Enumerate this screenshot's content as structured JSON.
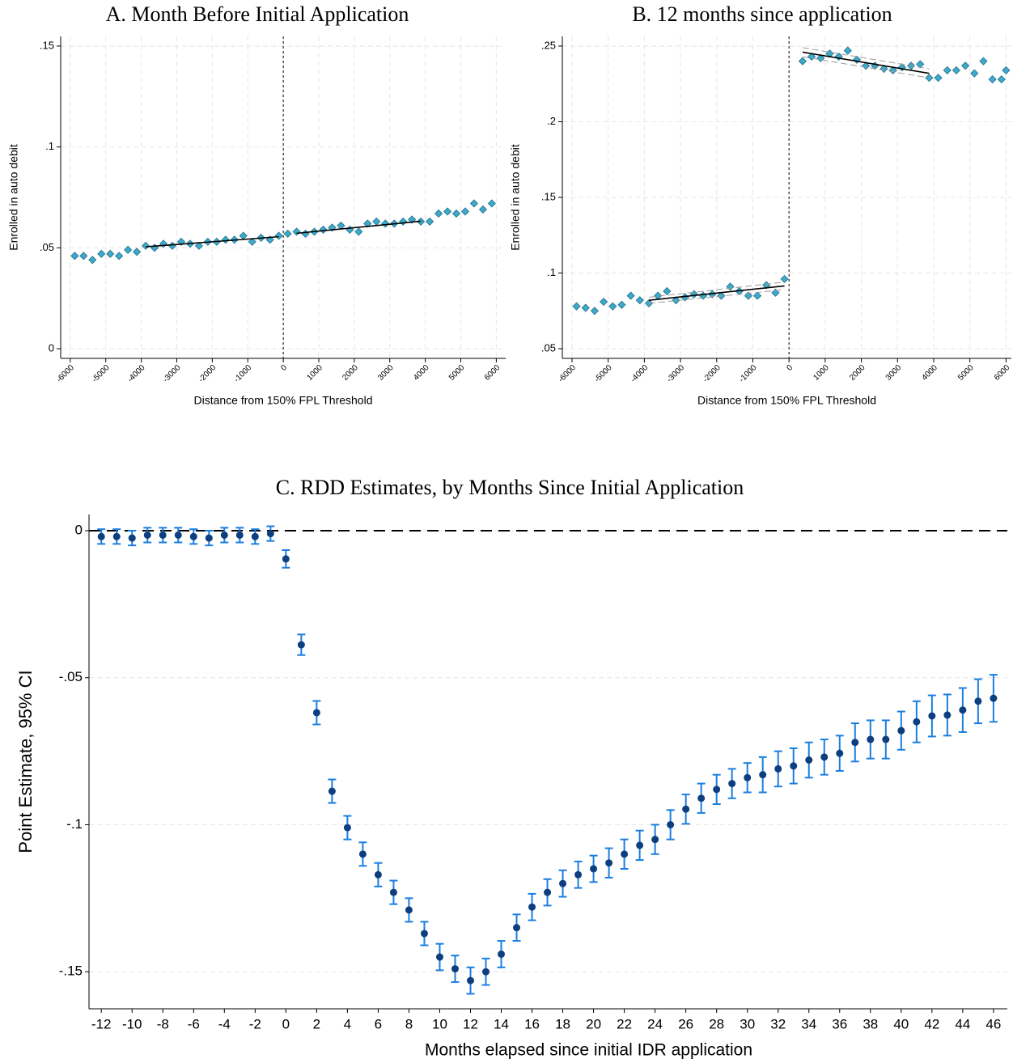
{
  "chart_data": [
    {
      "type": "scatter",
      "title": "A. Month Before Initial Application",
      "x_label": "Distance from 150% FPL Threshold",
      "y_label": "Enrolled in auto debit",
      "xlim": [
        -6270,
        6265
      ],
      "ylim": [
        -0.0048,
        0.1548
      ],
      "xticks": [
        -6000,
        -5000,
        -4000,
        -3000,
        -2000,
        -1000,
        0,
        1000,
        2000,
        3000,
        4000,
        5000,
        6000
      ],
      "yticks": [
        0,
        {
          "value": 0.05,
          "label": ".05"
        },
        {
          "value": 0.1,
          "label": ".1"
        },
        {
          "value": 0.15,
          "label": ".15"
        }
      ],
      "grid": true,
      "vline": 0,
      "series": [
        {
          "mode": "markers",
          "color": "#3fa9c9",
          "x": [
            -5875,
            -5625,
            -5375,
            -5125,
            -4875,
            -4625,
            -4375,
            -4125,
            -3875,
            -3625,
            -3375,
            -3125,
            -2875,
            -2625,
            -2375,
            -2125,
            -1875,
            -1625,
            -1375,
            -1125,
            -875,
            -625,
            -375,
            -125
          ],
          "values": [
            0.046,
            0.046,
            0.044,
            0.047,
            0.047,
            0.046,
            0.049,
            0.048,
            0.051,
            0.05,
            0.052,
            0.051,
            0.053,
            0.052,
            0.051,
            0.053,
            0.053,
            0.054,
            0.054,
            0.056,
            0.053,
            0.055,
            0.054,
            0.056
          ]
        },
        {
          "mode": "markers",
          "color": "#3fa9c9",
          "x": [
            125,
            375,
            625,
            875,
            1125,
            1375,
            1625,
            1875,
            2125,
            2375,
            2625,
            2875,
            3125,
            3375,
            3625,
            3875,
            4125,
            4375,
            4625,
            4875,
            5125,
            5375,
            5625,
            5875
          ],
          "values": [
            0.057,
            0.058,
            0.057,
            0.058,
            0.059,
            0.06,
            0.061,
            0.059,
            0.058,
            0.062,
            0.063,
            0.062,
            0.062,
            0.063,
            0.064,
            0.063,
            0.063,
            0.067,
            0.068,
            0.067,
            0.068,
            0.072,
            0.069,
            0.072
          ]
        },
        {
          "mode": "line",
          "color": "#000000",
          "x": [
            -3875,
            -125
          ],
          "values": [
            0.0505,
            0.0555
          ]
        },
        {
          "mode": "line",
          "color": "#000000",
          "x": [
            375,
            3875
          ],
          "values": [
            0.0572,
            0.0632
          ]
        }
      ]
    },
    {
      "type": "scatter",
      "title": "B. 12 months since application",
      "x_label": "Distance from 150% FPL Threshold",
      "y_label": "Enrolled in auto debit",
      "xlim": [
        -6268,
        6148
      ],
      "ylim": [
        0.0436,
        0.2564
      ],
      "xticks": [
        -6000,
        -5000,
        -4000,
        -3000,
        -2000,
        -1000,
        0,
        1000,
        2000,
        3000,
        4000,
        5000,
        6000
      ],
      "yticks": [
        {
          "value": 0.05,
          "label": ".05"
        },
        {
          "value": 0.1,
          "label": ".1"
        },
        {
          "value": 0.15,
          "label": ".15"
        },
        {
          "value": 0.2,
          "label": ".2"
        },
        {
          "value": 0.25,
          "label": ".25"
        }
      ],
      "grid": true,
      "vline": 0,
      "series": [
        {
          "mode": "markers",
          "color": "#3fa9c9",
          "x": [
            -5875,
            -5625,
            -5375,
            -5125,
            -4875,
            -4625,
            -4375,
            -4125,
            -3875,
            -3625,
            -3375,
            -3125,
            -2875,
            -2625,
            -2375,
            -2125,
            -1875,
            -1625,
            -1375,
            -1125,
            -875,
            -625,
            -375,
            -125
          ],
          "values": [
            0.078,
            0.077,
            0.075,
            0.081,
            0.078,
            0.079,
            0.085,
            0.082,
            0.08,
            0.085,
            0.088,
            0.082,
            0.084,
            0.086,
            0.085,
            0.086,
            0.085,
            0.091,
            0.088,
            0.085,
            0.085,
            0.092,
            0.087,
            0.096
          ]
        },
        {
          "mode": "markers",
          "color": "#3fa9c9",
          "x": [
            375,
            625,
            875,
            1125,
            1375,
            1625,
            1875,
            2125,
            2375,
            2625,
            2875,
            3125,
            3375,
            3625,
            3875,
            4125,
            4375,
            4625,
            4875,
            5125,
            5375,
            5625,
            5875,
            6000
          ],
          "values": [
            0.24,
            0.243,
            0.242,
            0.245,
            0.243,
            0.247,
            0.241,
            0.237,
            0.237,
            0.235,
            0.234,
            0.236,
            0.237,
            0.238,
            0.229,
            0.229,
            0.234,
            0.234,
            0.237,
            0.232,
            0.24,
            0.228,
            0.228,
            0.234
          ]
        },
        {
          "mode": "line",
          "color": "#000000",
          "x": [
            -3875,
            -125
          ],
          "values": [
            0.082,
            0.0915
          ]
        },
        {
          "mode": "dashed-line",
          "color": "#9a9a9a",
          "x": [
            -3875,
            -125
          ],
          "values": [
            0.08,
            0.089
          ]
        },
        {
          "mode": "dashed-line",
          "color": "#9a9a9a",
          "x": [
            -3875,
            -125
          ],
          "values": [
            0.084,
            0.094
          ]
        },
        {
          "mode": "line",
          "color": "#000000",
          "x": [
            375,
            3875
          ],
          "values": [
            0.246,
            0.232
          ]
        },
        {
          "mode": "dashed-line",
          "color": "#9a9a9a",
          "x": [
            375,
            3875
          ],
          "values": [
            0.249,
            0.235
          ]
        },
        {
          "mode": "dashed-line",
          "color": "#9a9a9a",
          "x": [
            375,
            3875
          ],
          "values": [
            0.243,
            0.229
          ]
        }
      ]
    },
    {
      "type": "errorbar",
      "title": "C. RDD Estimates, by Months Since Initial Application",
      "x_label": "Months elapsed since initial IDR application",
      "y_label": "Point Estimate, 95% CI",
      "xlim": [
        -12.8,
        46.9
      ],
      "ylim": [
        -0.1626,
        0.0055
      ],
      "xticks": [
        -12,
        -10,
        -8,
        -6,
        -4,
        -2,
        0,
        2,
        4,
        6,
        8,
        10,
        12,
        14,
        16,
        18,
        20,
        22,
        24,
        26,
        28,
        30,
        32,
        34,
        36,
        38,
        40,
        42,
        44,
        46
      ],
      "yticks": [
        0,
        {
          "value": -0.05,
          "label": "-.05"
        },
        {
          "value": -0.1,
          "label": "-.1"
        },
        {
          "value": -0.15,
          "label": "-.15"
        }
      ],
      "grid": true,
      "hline": 0,
      "series": [
        {
          "color": "#0d3f80",
          "error_color": "#1a7ee0",
          "x": [
            -12,
            -11,
            -10,
            -9,
            -8,
            -7,
            -6,
            -5,
            -4,
            -3,
            -2,
            -1,
            0,
            1,
            2,
            3,
            4,
            5,
            6,
            7,
            8,
            9,
            10,
            11,
            12,
            13,
            14,
            15,
            16,
            17,
            18,
            19,
            20,
            21,
            22,
            23,
            24,
            25,
            26,
            27,
            28,
            29,
            30,
            31,
            32,
            33,
            34,
            35,
            36,
            37,
            38,
            39,
            40,
            41,
            42,
            43,
            44,
            45,
            46
          ],
          "values": [
            -0.002,
            -0.002,
            -0.0025,
            -0.0015,
            -0.0015,
            -0.0015,
            -0.002,
            -0.0025,
            -0.0015,
            -0.0015,
            -0.002,
            -0.001,
            -0.0096,
            -0.0388,
            -0.0619,
            -0.0886,
            -0.101,
            -0.11,
            -0.117,
            -0.123,
            -0.129,
            -0.137,
            -0.145,
            -0.149,
            -0.153,
            -0.15,
            -0.144,
            -0.135,
            -0.128,
            -0.123,
            -0.12,
            -0.117,
            -0.115,
            -0.113,
            -0.11,
            -0.107,
            -0.105,
            -0.1,
            -0.0947,
            -0.091,
            -0.088,
            -0.086,
            -0.084,
            -0.083,
            -0.081,
            -0.08,
            -0.078,
            -0.077,
            -0.0757,
            -0.072,
            -0.071,
            -0.071,
            -0.068,
            -0.065,
            -0.063,
            -0.0627,
            -0.061,
            -0.058,
            -0.057
          ],
          "errors": [
            0.0025,
            0.0025,
            0.0025,
            0.0025,
            0.0025,
            0.0025,
            0.0025,
            0.0025,
            0.0025,
            0.0025,
            0.0025,
            0.0025,
            0.003,
            0.0035,
            0.004,
            0.004,
            0.004,
            0.004,
            0.004,
            0.004,
            0.004,
            0.004,
            0.0045,
            0.0045,
            0.0045,
            0.0045,
            0.0045,
            0.0045,
            0.0045,
            0.0045,
            0.0045,
            0.0045,
            0.0045,
            0.005,
            0.005,
            0.005,
            0.005,
            0.005,
            0.005,
            0.005,
            0.005,
            0.005,
            0.005,
            0.006,
            0.006,
            0.006,
            0.006,
            0.006,
            0.006,
            0.0065,
            0.0065,
            0.0065,
            0.0065,
            0.007,
            0.007,
            0.007,
            0.0075,
            0.0075,
            0.008
          ]
        }
      ]
    }
  ]
}
